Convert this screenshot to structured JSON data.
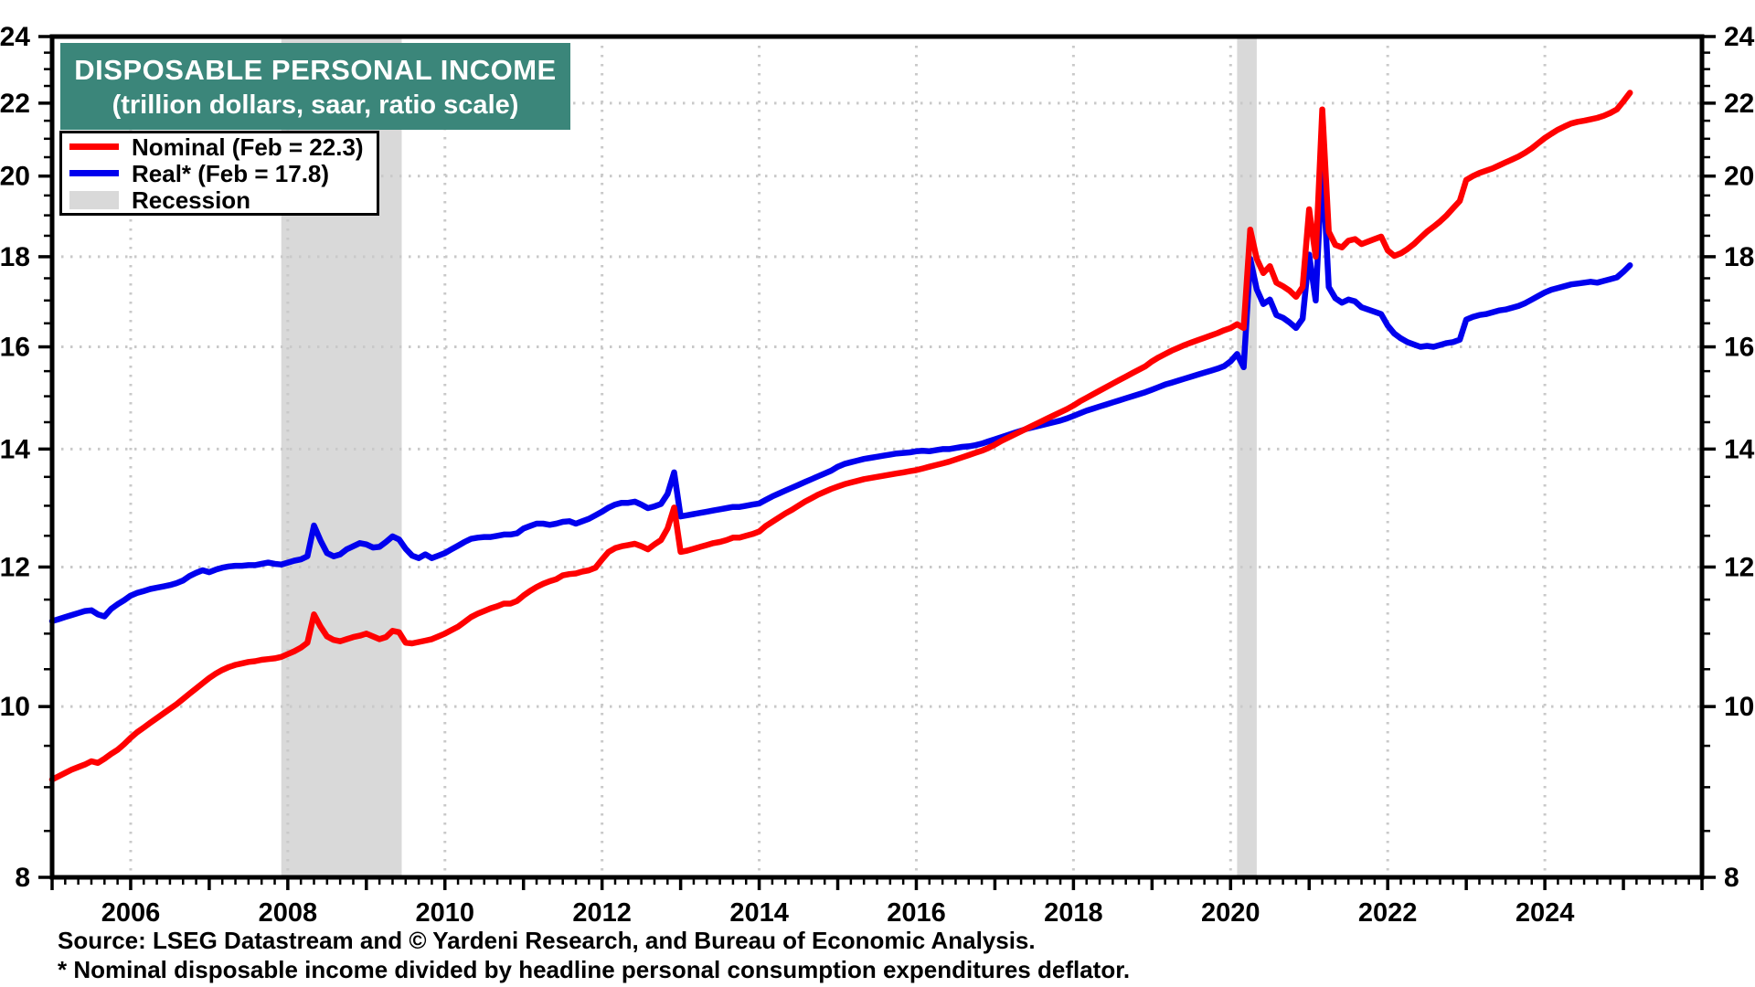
{
  "title": {
    "line1": "DISPOSABLE PERSONAL INCOME",
    "line2": "(trillion dollars, saar, ratio scale)"
  },
  "legend": {
    "position": "top-left",
    "items": [
      {
        "label": "Nominal (Feb = 22.3)",
        "swatch": "line",
        "color": "#ff0000"
      },
      {
        "label": "Real* (Feb = 17.8)",
        "swatch": "line",
        "color": "#0000ee"
      },
      {
        "label": "Recession",
        "swatch": "fill",
        "color": "#d9d9d9"
      }
    ]
  },
  "footer": {
    "source": "Source: LSEG Datastream and © Yardeni Research, and Bureau of Economic Analysis.",
    "footnote": "* Nominal disposable income divided by headline personal consumption expenditures deflator."
  },
  "colors": {
    "title_bg": "#3b867a",
    "nominal": "#ff0000",
    "real": "#0000ee",
    "recession": "#d9d9d9",
    "grid": "#c9c9c9",
    "axis": "#000000"
  },
  "chart_data": {
    "type": "line",
    "title": "DISPOSABLE PERSONAL INCOME",
    "subtitle": "(trillion dollars, saar, ratio scale)",
    "y_scale": "log",
    "grid": true,
    "x_range": [
      2005,
      2026
    ],
    "y_range": [
      8,
      24
    ],
    "y_tick_labels": [
      8,
      10,
      12,
      14,
      16,
      18,
      20,
      22,
      24
    ],
    "y_gridlines": [
      10,
      12,
      14,
      16,
      18,
      20,
      22
    ],
    "y_minor_step": 0.5,
    "x_tick_labels": [
      2006,
      2008,
      2010,
      2012,
      2014,
      2016,
      2018,
      2020,
      2022,
      2024
    ],
    "x_gridlines": [
      2006,
      2008,
      2010,
      2012,
      2014,
      2016,
      2018,
      2020,
      2022,
      2024
    ],
    "x_minor_steps_per_year": 6,
    "recession_bands": [
      {
        "start": 2007.917,
        "end": 2009.45
      },
      {
        "start": 2020.083,
        "end": 2020.333
      }
    ],
    "series_start_year": 2005,
    "series_frequency": "monthly",
    "series_end_label": "Feb 2025",
    "series": [
      {
        "name": "Nominal",
        "color": "#ff0000",
        "last_value": 22.3,
        "values": [
          9.09,
          9.13,
          9.17,
          9.21,
          9.24,
          9.27,
          9.31,
          9.29,
          9.34,
          9.4,
          9.45,
          9.52,
          9.6,
          9.67,
          9.73,
          9.79,
          9.85,
          9.91,
          9.97,
          10.03,
          10.1,
          10.17,
          10.24,
          10.31,
          10.38,
          10.44,
          10.49,
          10.53,
          10.56,
          10.58,
          10.6,
          10.61,
          10.63,
          10.64,
          10.65,
          10.67,
          10.71,
          10.75,
          10.8,
          10.87,
          11.28,
          11.1,
          10.96,
          10.91,
          10.89,
          10.92,
          10.95,
          10.97,
          11.0,
          10.96,
          10.92,
          10.95,
          11.04,
          11.02,
          10.87,
          10.86,
          10.88,
          10.9,
          10.92,
          10.96,
          11.0,
          11.05,
          11.1,
          11.17,
          11.24,
          11.29,
          11.33,
          11.37,
          11.4,
          11.44,
          11.44,
          11.48,
          11.56,
          11.63,
          11.69,
          11.74,
          11.78,
          11.81,
          11.87,
          11.89,
          11.9,
          11.93,
          11.95,
          11.99,
          12.12,
          12.24,
          12.3,
          12.33,
          12.35,
          12.37,
          12.33,
          12.28,
          12.36,
          12.43,
          12.62,
          12.97,
          12.24,
          12.26,
          12.29,
          12.32,
          12.35,
          12.38,
          12.4,
          12.43,
          12.47,
          12.47,
          12.5,
          12.53,
          12.57,
          12.66,
          12.73,
          12.8,
          12.87,
          12.93,
          13.0,
          13.07,
          13.13,
          13.19,
          13.24,
          13.29,
          13.33,
          13.37,
          13.4,
          13.43,
          13.46,
          13.48,
          13.5,
          13.52,
          13.54,
          13.56,
          13.58,
          13.6,
          13.62,
          13.65,
          13.68,
          13.71,
          13.74,
          13.77,
          13.81,
          13.85,
          13.89,
          13.93,
          13.97,
          14.02,
          14.08,
          14.15,
          14.21,
          14.27,
          14.33,
          14.39,
          14.45,
          14.51,
          14.57,
          14.63,
          14.69,
          14.75,
          14.82,
          14.9,
          14.97,
          15.04,
          15.11,
          15.18,
          15.25,
          15.32,
          15.39,
          15.46,
          15.53,
          15.6,
          15.7,
          15.78,
          15.85,
          15.92,
          15.98,
          16.04,
          16.09,
          16.14,
          16.19,
          16.24,
          16.29,
          16.35,
          16.4,
          16.48,
          16.4,
          18.65,
          17.95,
          17.62,
          17.78,
          17.4,
          17.32,
          17.22,
          17.08,
          17.3,
          19.15,
          18.0,
          21.82,
          18.6,
          18.28,
          18.22,
          18.38,
          18.42,
          18.3,
          18.36,
          18.42,
          18.48,
          18.15,
          18.02,
          18.08,
          18.18,
          18.3,
          18.45,
          18.6,
          18.72,
          18.85,
          19.0,
          19.18,
          19.36,
          19.9,
          20.0,
          20.08,
          20.14,
          20.2,
          20.28,
          20.36,
          20.44,
          20.52,
          20.62,
          20.74,
          20.88,
          21.02,
          21.14,
          21.25,
          21.34,
          21.42,
          21.47,
          21.5,
          21.54,
          21.58,
          21.64,
          21.72,
          21.82,
          22.05,
          22.3
        ]
      },
      {
        "name": "Real",
        "color": "#0000ee",
        "last_value": 17.8,
        "values": [
          11.18,
          11.21,
          11.24,
          11.27,
          11.3,
          11.33,
          11.34,
          11.28,
          11.25,
          11.36,
          11.43,
          11.49,
          11.56,
          11.6,
          11.63,
          11.66,
          11.68,
          11.7,
          11.72,
          11.75,
          11.79,
          11.86,
          11.91,
          11.95,
          11.92,
          11.96,
          11.99,
          12.01,
          12.02,
          12.02,
          12.03,
          12.03,
          12.05,
          12.07,
          12.05,
          12.04,
          12.07,
          12.1,
          12.12,
          12.17,
          12.67,
          12.42,
          12.22,
          12.17,
          12.2,
          12.28,
          12.33,
          12.38,
          12.36,
          12.31,
          12.32,
          12.4,
          12.49,
          12.44,
          12.29,
          12.18,
          12.14,
          12.2,
          12.14,
          12.18,
          12.22,
          12.28,
          12.34,
          12.4,
          12.45,
          12.47,
          12.48,
          12.48,
          12.5,
          12.52,
          12.52,
          12.54,
          12.62,
          12.66,
          12.7,
          12.7,
          12.68,
          12.7,
          12.73,
          12.74,
          12.7,
          12.74,
          12.78,
          12.84,
          12.9,
          12.97,
          13.02,
          13.05,
          13.05,
          13.07,
          13.02,
          12.96,
          12.99,
          13.03,
          13.2,
          13.58,
          12.82,
          12.84,
          12.86,
          12.88,
          12.9,
          12.92,
          12.94,
          12.96,
          12.98,
          12.98,
          13.0,
          13.02,
          13.04,
          13.1,
          13.16,
          13.21,
          13.26,
          13.31,
          13.36,
          13.41,
          13.46,
          13.51,
          13.56,
          13.61,
          13.68,
          13.73,
          13.76,
          13.79,
          13.82,
          13.84,
          13.86,
          13.88,
          13.9,
          13.92,
          13.93,
          13.94,
          13.96,
          13.97,
          13.96,
          13.98,
          14.0,
          14.0,
          14.02,
          14.04,
          14.05,
          14.07,
          14.1,
          14.14,
          14.18,
          14.22,
          14.26,
          14.3,
          14.34,
          14.38,
          14.41,
          14.44,
          14.47,
          14.5,
          14.53,
          14.57,
          14.62,
          14.67,
          14.72,
          14.76,
          14.8,
          14.84,
          14.88,
          14.92,
          14.96,
          15.0,
          15.04,
          15.08,
          15.13,
          15.18,
          15.23,
          15.27,
          15.31,
          15.35,
          15.39,
          15.43,
          15.47,
          15.51,
          15.55,
          15.6,
          15.7,
          15.85,
          15.58,
          17.95,
          17.25,
          16.92,
          17.02,
          16.68,
          16.62,
          16.52,
          16.4,
          16.6,
          18.05,
          17.0,
          20.4,
          17.3,
          17.05,
          16.95,
          17.02,
          16.98,
          16.85,
          16.8,
          16.75,
          16.7,
          16.45,
          16.28,
          16.18,
          16.1,
          16.05,
          16.0,
          16.02,
          16.0,
          16.04,
          16.08,
          16.1,
          16.15,
          16.58,
          16.64,
          16.68,
          16.7,
          16.74,
          16.78,
          16.8,
          16.84,
          16.88,
          16.94,
          17.02,
          17.1,
          17.18,
          17.24,
          17.28,
          17.32,
          17.36,
          17.38,
          17.4,
          17.42,
          17.4,
          17.44,
          17.48,
          17.52,
          17.65,
          17.8
        ]
      }
    ]
  }
}
